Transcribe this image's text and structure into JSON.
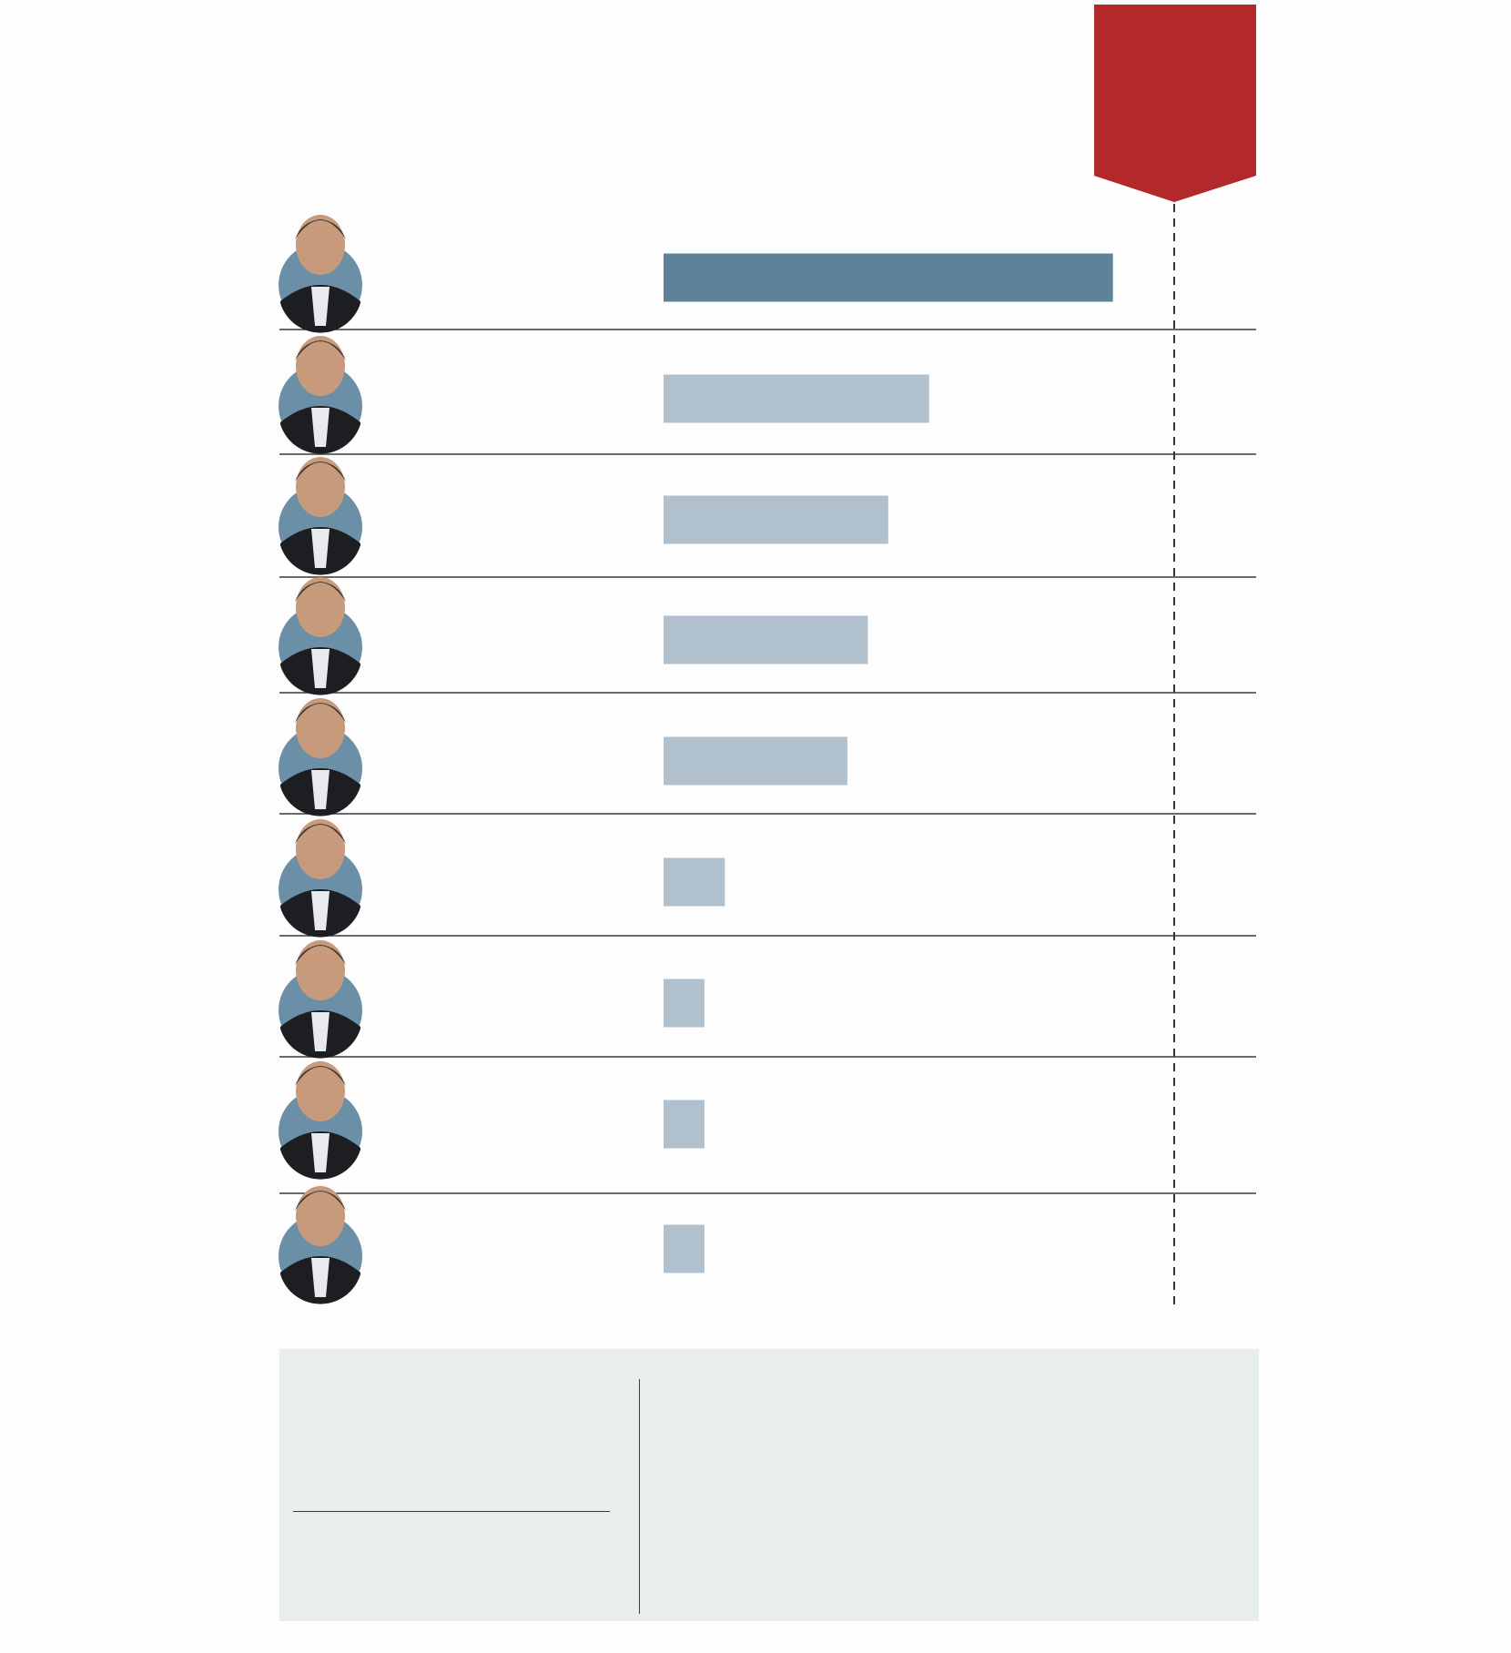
{
  "chart_data": {
    "type": "bar",
    "orientation": "horizontal",
    "categories": [
      "",
      "",
      "",
      "",
      "",
      "",
      "",
      "",
      ""
    ],
    "values": [
      11,
      6.5,
      5.5,
      5,
      4.5,
      1.5,
      1,
      1,
      1
    ],
    "xlim": [
      0,
      12.5
    ],
    "reference_line": 12.5,
    "highlight_index": 0,
    "grid": false,
    "legend": "none"
  },
  "colors": {
    "highlight_bar": "#5d8299",
    "bar": "#b1c0cd",
    "reference_flag": "#b2282b",
    "row_divider": "#3a3a3a",
    "avatar_bg": "#6a8fa6",
    "panel_bg": "#e8eded"
  },
  "icons": {
    "row_avatar": "person-photo-icon"
  }
}
